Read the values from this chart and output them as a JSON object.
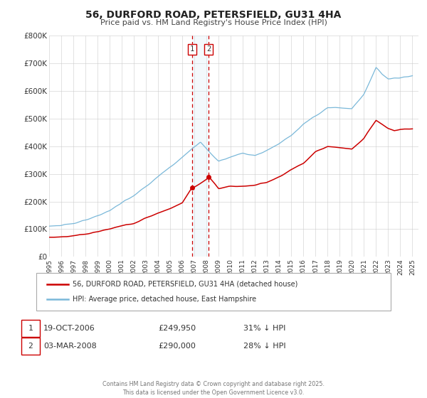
{
  "title": "56, DURFORD ROAD, PETERSFIELD, GU31 4HA",
  "subtitle": "Price paid vs. HM Land Registry's House Price Index (HPI)",
  "legend_entry1": "56, DURFORD ROAD, PETERSFIELD, GU31 4HA (detached house)",
  "legend_entry2": "HPI: Average price, detached house, East Hampshire",
  "transaction1_date": "19-OCT-2006",
  "transaction1_price": 249950,
  "transaction1_hpi": "31% ↓ HPI",
  "transaction2_date": "03-MAR-2008",
  "transaction2_price": 290000,
  "transaction2_hpi": "28% ↓ HPI",
  "footer": "Contains HM Land Registry data © Crown copyright and database right 2025.\nThis data is licensed under the Open Government Licence v3.0.",
  "color_hpi_line": "#7ab8d9",
  "color_price_line": "#cc0000",
  "color_transaction_dot": "#cc0000",
  "color_vline": "#cc0000",
  "color_shading": "#ddeef8",
  "color_grid": "#cccccc",
  "ylim": [
    0,
    800000
  ],
  "yticks": [
    0,
    100000,
    200000,
    300000,
    400000,
    500000,
    600000,
    700000,
    800000
  ],
  "ytick_labels": [
    "£0",
    "£100K",
    "£200K",
    "£300K",
    "£400K",
    "£500K",
    "£600K",
    "£700K",
    "£800K"
  ],
  "xlim_start": 1995,
  "xlim_end": 2025.5,
  "transaction1_year": 2006.8,
  "transaction2_year": 2008.17,
  "hpi_ctrl_x": [
    1995,
    1996,
    1997,
    1998,
    1999,
    2000,
    2001,
    2002,
    2003,
    2004,
    2005,
    2006,
    2007,
    2007.5,
    2008,
    2009,
    2010,
    2011,
    2012,
    2013,
    2014,
    2015,
    2016,
    2017,
    2018,
    2019,
    2020,
    2021,
    2021.5,
    2022,
    2022.5,
    2023,
    2024,
    2025
  ],
  "hpi_ctrl_y": [
    110000,
    113000,
    120000,
    132000,
    148000,
    168000,
    195000,
    220000,
    255000,
    290000,
    325000,
    360000,
    400000,
    415000,
    390000,
    345000,
    360000,
    375000,
    365000,
    385000,
    410000,
    440000,
    480000,
    510000,
    540000,
    540000,
    535000,
    590000,
    640000,
    685000,
    660000,
    645000,
    648000,
    655000
  ],
  "red_ctrl_x": [
    1995,
    1996,
    1997,
    1998,
    1999,
    2000,
    2001,
    2002,
    2003,
    2004,
    2005,
    2006,
    2006.8,
    2007,
    2008,
    2008.17,
    2009,
    2010,
    2011,
    2012,
    2013,
    2014,
    2015,
    2016,
    2017,
    2018,
    2019,
    2020,
    2021,
    2022,
    2022.5,
    2023,
    2023.5,
    2024,
    2025
  ],
  "red_ctrl_y": [
    70000,
    72000,
    76000,
    82000,
    90000,
    100000,
    112000,
    122000,
    140000,
    158000,
    175000,
    195000,
    249950,
    252000,
    280000,
    290000,
    248000,
    255000,
    255000,
    260000,
    270000,
    290000,
    315000,
    340000,
    380000,
    400000,
    395000,
    390000,
    430000,
    495000,
    480000,
    465000,
    455000,
    460000,
    462000
  ]
}
